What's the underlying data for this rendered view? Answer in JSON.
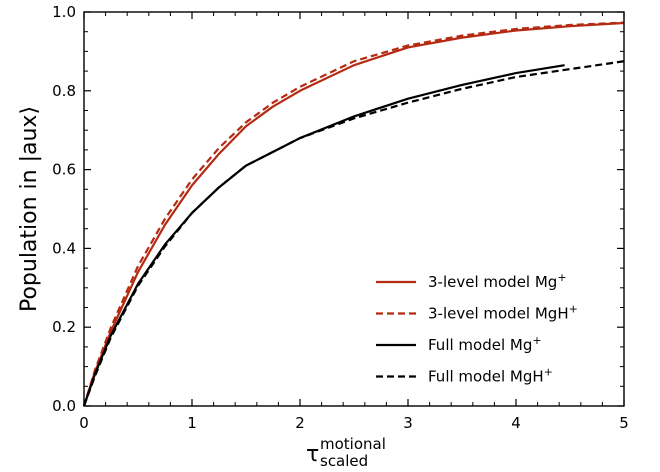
{
  "chart_data": {
    "type": "line",
    "ylabel": "Population in |aux⟩",
    "xlabel": {
      "base": "τ",
      "superscript": "motional",
      "subscript": "scaled"
    },
    "xlim": [
      0,
      5
    ],
    "ylim": [
      0,
      1.0
    ],
    "xticks": [
      0,
      1,
      2,
      3,
      4,
      5
    ],
    "xtick_labels": [
      "0",
      "1",
      "2",
      "3",
      "4",
      "5"
    ],
    "yticks": [
      0,
      0.2,
      0.4,
      0.6,
      0.8,
      1.0
    ],
    "ytick_labels": [
      "0.0",
      "0.2",
      "0.4",
      "0.6",
      "0.8",
      "1.0"
    ],
    "grid": false,
    "legend_position": "bottom-right",
    "series": [
      {
        "name": "3-level model Mg",
        "sup": "+",
        "color": "#b52a12",
        "dash": "solid",
        "x": [
          0,
          0.1,
          0.25,
          0.5,
          0.75,
          1.0,
          1.25,
          1.5,
          1.75,
          2.0,
          2.5,
          3.0,
          3.5,
          4.0,
          4.5,
          5.0
        ],
        "y": [
          0,
          0.085,
          0.19,
          0.34,
          0.46,
          0.56,
          0.64,
          0.71,
          0.76,
          0.8,
          0.865,
          0.91,
          0.935,
          0.953,
          0.964,
          0.972
        ]
      },
      {
        "name": "3-level model MgH",
        "sup": "+",
        "color": "#b52a12",
        "dash": "dashed",
        "x": [
          0,
          0.1,
          0.25,
          0.5,
          0.75,
          1.0,
          1.25,
          1.5,
          1.75,
          2.0,
          2.5,
          3.0,
          3.5,
          4.0,
          4.5,
          5.0
        ],
        "y": [
          0,
          0.09,
          0.2,
          0.355,
          0.475,
          0.575,
          0.655,
          0.72,
          0.77,
          0.81,
          0.875,
          0.915,
          0.94,
          0.957,
          0.967,
          0.973
        ]
      },
      {
        "name": "Full model Mg",
        "sup": "+",
        "color": "#000000",
        "dash": "solid",
        "x": [
          0,
          0.1,
          0.25,
          0.5,
          0.75,
          1.0,
          1.25,
          1.5,
          1.75,
          2.0,
          2.5,
          3.0,
          3.5,
          4.0,
          4.45
        ],
        "y": [
          0,
          0.08,
          0.18,
          0.31,
          0.41,
          0.49,
          0.555,
          0.61,
          0.645,
          0.68,
          0.735,
          0.78,
          0.815,
          0.845,
          0.865
        ]
      },
      {
        "name": "Full model MgH",
        "sup": "+",
        "color": "#000000",
        "dash": "dashed",
        "x": [
          0,
          0.1,
          0.25,
          0.5,
          0.75,
          1.0,
          1.25,
          1.5,
          1.75,
          2.0,
          2.5,
          3.0,
          3.5,
          4.0,
          4.5,
          5.0
        ],
        "y": [
          0,
          0.075,
          0.175,
          0.305,
          0.405,
          0.49,
          0.555,
          0.61,
          0.645,
          0.68,
          0.73,
          0.77,
          0.805,
          0.835,
          0.855,
          0.875
        ]
      }
    ]
  }
}
